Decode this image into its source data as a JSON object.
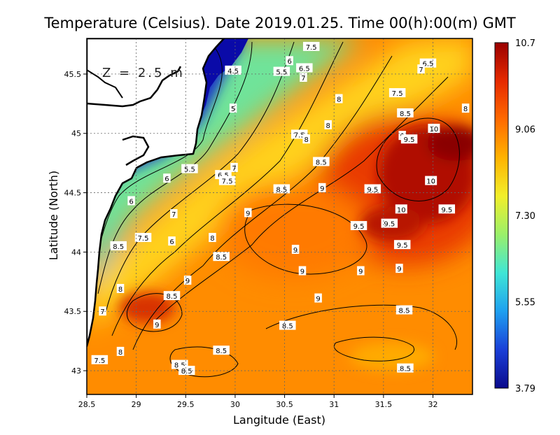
{
  "chart_data": {
    "type": "heatmap",
    "title": "Temperature (Celsius). Date 2019.01.25. Time 00(h):00(m) GMT",
    "xlabel": "Langitude (East)",
    "ylabel": "Latitude (North)",
    "annotation": "Z = 2.5 m",
    "xlim": [
      28.5,
      32.4
    ],
    "ylim": [
      42.8,
      45.8
    ],
    "x_ticks": [
      "28.5",
      "29",
      "29.5",
      "30",
      "30.5",
      "31",
      "31.5",
      "32"
    ],
    "y_ticks": [
      "43",
      "43.5",
      "44",
      "44.5",
      "45",
      "45.5"
    ],
    "colorbar": {
      "min": 3.79,
      "max": 10.7,
      "labels": [
        "10.7",
        "9.06",
        "7.30",
        "5.55",
        "3.79"
      ],
      "colors": [
        "#0a0a8c",
        "#1a3fd8",
        "#1ea0f0",
        "#3fe6d6",
        "#9af06a",
        "#f2ef2a",
        "#ffb300",
        "#ff6a00",
        "#e62a00",
        "#9a0000"
      ]
    },
    "contour_labels": [
      {
        "text": "7.5",
        "lon": 30.77,
        "lat": 45.73
      },
      {
        "text": "6",
        "lon": 30.55,
        "lat": 45.61
      },
      {
        "text": "6.5",
        "lon": 30.7,
        "lat": 45.55
      },
      {
        "text": "6.5",
        "lon": 31.95,
        "lat": 45.59
      },
      {
        "text": "4.5",
        "lon": 29.98,
        "lat": 45.53
      },
      {
        "text": "5.5",
        "lon": 30.47,
        "lat": 45.52
      },
      {
        "text": "7",
        "lon": 30.69,
        "lat": 45.47
      },
      {
        "text": "7",
        "lon": 31.88,
        "lat": 45.54
      },
      {
        "text": "7.5",
        "lon": 31.64,
        "lat": 45.34
      },
      {
        "text": "8",
        "lon": 31.05,
        "lat": 45.29
      },
      {
        "text": "8",
        "lon": 32.33,
        "lat": 45.21
      },
      {
        "text": "5",
        "lon": 29.98,
        "lat": 45.21
      },
      {
        "text": "8.5",
        "lon": 31.72,
        "lat": 45.17
      },
      {
        "text": "8",
        "lon": 30.94,
        "lat": 45.07
      },
      {
        "text": "10",
        "lon": 32.01,
        "lat": 45.04
      },
      {
        "text": "7.5",
        "lon": 30.65,
        "lat": 44.99
      },
      {
        "text": "9",
        "lon": 31.69,
        "lat": 44.98
      },
      {
        "text": "9.5",
        "lon": 31.76,
        "lat": 44.95
      },
      {
        "text": "8",
        "lon": 30.72,
        "lat": 44.95
      },
      {
        "text": "8.5",
        "lon": 30.87,
        "lat": 44.76
      },
      {
        "text": "5.5",
        "lon": 29.54,
        "lat": 44.7
      },
      {
        "text": "7",
        "lon": 29.99,
        "lat": 44.71
      },
      {
        "text": "6.5",
        "lon": 29.88,
        "lat": 44.65
      },
      {
        "text": "7.5",
        "lon": 29.92,
        "lat": 44.6
      },
      {
        "text": "6",
        "lon": 29.31,
        "lat": 44.62
      },
      {
        "text": "10",
        "lon": 31.98,
        "lat": 44.6
      },
      {
        "text": "9",
        "lon": 30.88,
        "lat": 44.54
      },
      {
        "text": "8.5",
        "lon": 30.47,
        "lat": 44.53
      },
      {
        "text": "9.5",
        "lon": 31.39,
        "lat": 44.53
      },
      {
        "text": "6",
        "lon": 28.95,
        "lat": 44.43
      },
      {
        "text": "10",
        "lon": 31.68,
        "lat": 44.36
      },
      {
        "text": "9.5",
        "lon": 32.14,
        "lat": 44.36
      },
      {
        "text": "9",
        "lon": 30.13,
        "lat": 44.33
      },
      {
        "text": "7",
        "lon": 29.38,
        "lat": 44.32
      },
      {
        "text": "9.5",
        "lon": 31.25,
        "lat": 44.22
      },
      {
        "text": "9.5",
        "lon": 31.56,
        "lat": 44.24
      },
      {
        "text": "8",
        "lon": 29.77,
        "lat": 44.12
      },
      {
        "text": "7.5",
        "lon": 29.07,
        "lat": 44.12
      },
      {
        "text": "6",
        "lon": 29.36,
        "lat": 44.09
      },
      {
        "text": "9.5",
        "lon": 31.69,
        "lat": 44.06
      },
      {
        "text": "8.5",
        "lon": 28.82,
        "lat": 44.05
      },
      {
        "text": "9",
        "lon": 30.61,
        "lat": 44.02
      },
      {
        "text": "8.5",
        "lon": 29.86,
        "lat": 43.96
      },
      {
        "text": "9",
        "lon": 31.66,
        "lat": 43.86
      },
      {
        "text": "9",
        "lon": 31.27,
        "lat": 43.84
      },
      {
        "text": "9",
        "lon": 30.68,
        "lat": 43.84
      },
      {
        "text": "9",
        "lon": 29.52,
        "lat": 43.76
      },
      {
        "text": "8",
        "lon": 28.84,
        "lat": 43.69
      },
      {
        "text": "8.5",
        "lon": 29.36,
        "lat": 43.63
      },
      {
        "text": "9",
        "lon": 30.84,
        "lat": 43.61
      },
      {
        "text": "7",
        "lon": 28.66,
        "lat": 43.5
      },
      {
        "text": "8.5",
        "lon": 31.71,
        "lat": 43.51
      },
      {
        "text": "9",
        "lon": 29.21,
        "lat": 43.39
      },
      {
        "text": "8.5",
        "lon": 30.53,
        "lat": 43.38
      },
      {
        "text": "8.5",
        "lon": 29.86,
        "lat": 43.17
      },
      {
        "text": "8",
        "lon": 28.84,
        "lat": 43.16
      },
      {
        "text": "7.5",
        "lon": 28.63,
        "lat": 43.09
      },
      {
        "text": "8.5",
        "lon": 29.44,
        "lat": 43.05
      },
      {
        "text": "8.5",
        "lon": 29.51,
        "lat": 43.0
      },
      {
        "text": "8.5",
        "lon": 31.72,
        "lat": 43.02
      }
    ]
  }
}
